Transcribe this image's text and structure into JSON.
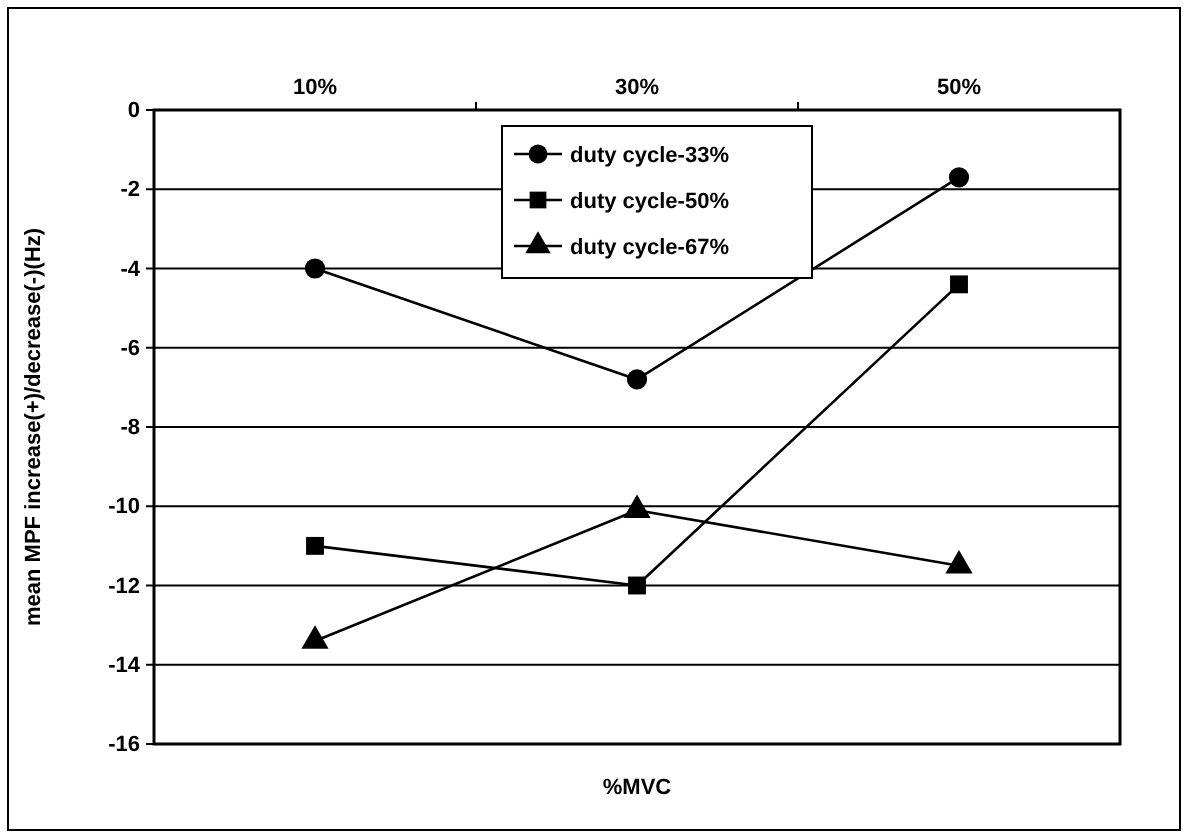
{
  "chart_data": {
    "type": "line",
    "xlabel": "%MVC",
    "ylabel": "mean MPF increase(+)/decrease(-)(Hz)",
    "categories": [
      "10%",
      "30%",
      "50%"
    ],
    "series": [
      {
        "name": "duty cycle-33%",
        "color": "#000000",
        "marker": "circle",
        "values": [
          -4,
          -6.8,
          -1.7
        ]
      },
      {
        "name": "duty cycle-50%",
        "color": "#000000",
        "marker": "square",
        "values": [
          -11,
          -12,
          -4.4
        ]
      },
      {
        "name": "duty cycle-67%",
        "color": "#000000",
        "marker": "triangle",
        "values": [
          -13.4,
          -10.1,
          -11.5
        ]
      }
    ],
    "ylim": [
      -16,
      0
    ],
    "yticks": [
      -16,
      -14,
      -12,
      -10,
      -8,
      -6,
      -4,
      -2,
      0
    ],
    "grid": "y",
    "legend": "top",
    "line_style": "solid"
  }
}
